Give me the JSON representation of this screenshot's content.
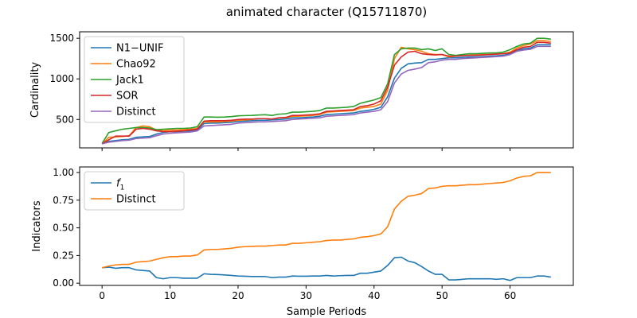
{
  "figure": {
    "suptitle": "animated character (Q15711870)"
  },
  "colors": {
    "blue": "#1f77b4",
    "orange": "#ff7f0e",
    "green": "#2ca02c",
    "red": "#d62728",
    "purple": "#9467bd"
  },
  "chart_data": [
    {
      "type": "line",
      "ylabel": "Cardinality",
      "xlim": [
        -3.3,
        69.3
      ],
      "ylim": [
        150,
        1580
      ],
      "yticks": [
        500,
        1000,
        1500
      ],
      "xticks": [
        0,
        10,
        20,
        30,
        40,
        50,
        60
      ],
      "xticklabels_visible": false,
      "legend": "upper left",
      "x": [
        0,
        1,
        2,
        3,
        4,
        5,
        6,
        7,
        8,
        9,
        10,
        11,
        12,
        13,
        14,
        15,
        16,
        17,
        18,
        19,
        20,
        21,
        22,
        23,
        24,
        25,
        26,
        27,
        28,
        29,
        30,
        31,
        32,
        33,
        34,
        35,
        36,
        37,
        38,
        39,
        40,
        41,
        42,
        43,
        44,
        45,
        46,
        47,
        48,
        49,
        50,
        51,
        52,
        53,
        54,
        55,
        56,
        57,
        58,
        59,
        60,
        61,
        62,
        63,
        64,
        65,
        66
      ],
      "series": [
        {
          "name": "N1−UNIF",
          "color": "blue",
          "values": [
            200,
            230,
            240,
            250,
            255,
            280,
            285,
            290,
            320,
            340,
            350,
            350,
            355,
            360,
            370,
            450,
            455,
            455,
            460,
            465,
            475,
            480,
            485,
            490,
            490,
            495,
            500,
            505,
            520,
            520,
            525,
            530,
            540,
            560,
            565,
            570,
            575,
            580,
            600,
            610,
            625,
            650,
            780,
            1010,
            1130,
            1185,
            1195,
            1200,
            1240,
            1240,
            1250,
            1260,
            1260,
            1265,
            1270,
            1270,
            1275,
            1280,
            1285,
            1290,
            1310,
            1350,
            1370,
            1380,
            1420,
            1420,
            1420
          ]
        },
        {
          "name": "Chao92",
          "color": "orange",
          "values": [
            200,
            280,
            285,
            290,
            300,
            400,
            420,
            410,
            370,
            360,
            370,
            370,
            375,
            380,
            390,
            470,
            470,
            470,
            475,
            480,
            490,
            495,
            500,
            510,
            510,
            505,
            520,
            520,
            540,
            540,
            545,
            550,
            560,
            590,
            595,
            600,
            605,
            610,
            640,
            650,
            660,
            690,
            860,
            1250,
            1390,
            1370,
            1360,
            1340,
            1310,
            1300,
            1300,
            1270,
            1280,
            1290,
            1290,
            1295,
            1300,
            1300,
            1305,
            1310,
            1330,
            1380,
            1410,
            1430,
            1470,
            1470,
            1460
          ]
        },
        {
          "name": "Jack1",
          "color": "green",
          "values": [
            205,
            340,
            360,
            380,
            390,
            400,
            400,
            395,
            375,
            380,
            385,
            390,
            390,
            395,
            410,
            530,
            530,
            528,
            530,
            535,
            545,
            548,
            550,
            555,
            558,
            550,
            565,
            570,
            590,
            590,
            595,
            600,
            610,
            640,
            640,
            645,
            650,
            660,
            700,
            720,
            740,
            770,
            940,
            1300,
            1370,
            1380,
            1380,
            1360,
            1370,
            1350,
            1370,
            1300,
            1290,
            1300,
            1310,
            1310,
            1315,
            1320,
            1320,
            1330,
            1360,
            1400,
            1430,
            1440,
            1500,
            1500,
            1490
          ]
        },
        {
          "name": "SOR",
          "color": "red",
          "values": [
            200,
            250,
            295,
            295,
            295,
            380,
            390,
            380,
            360,
            350,
            350,
            355,
            360,
            370,
            380,
            480,
            485,
            485,
            485,
            490,
            500,
            505,
            505,
            510,
            510,
            505,
            520,
            525,
            550,
            550,
            555,
            560,
            570,
            600,
            605,
            610,
            615,
            620,
            660,
            670,
            690,
            730,
            900,
            1170,
            1270,
            1330,
            1340,
            1310,
            1300,
            1295,
            1300,
            1280,
            1280,
            1285,
            1290,
            1290,
            1295,
            1300,
            1305,
            1310,
            1320,
            1360,
            1390,
            1400,
            1450,
            1450,
            1440
          ]
        },
        {
          "name": "Distinct",
          "color": "purple",
          "values": [
            200,
            220,
            230,
            240,
            245,
            265,
            270,
            275,
            300,
            320,
            330,
            335,
            340,
            345,
            360,
            420,
            425,
            430,
            435,
            440,
            455,
            460,
            465,
            470,
            470,
            475,
            480,
            485,
            500,
            505,
            510,
            515,
            520,
            540,
            545,
            550,
            555,
            560,
            580,
            590,
            600,
            620,
            720,
            950,
            1060,
            1105,
            1120,
            1140,
            1200,
            1210,
            1230,
            1240,
            1240,
            1250,
            1255,
            1260,
            1265,
            1270,
            1275,
            1280,
            1300,
            1340,
            1355,
            1365,
            1400,
            1400,
            1400
          ]
        }
      ]
    },
    {
      "type": "line",
      "xlabel": "Sample Periods",
      "ylabel": "Indicators",
      "xlim": [
        -3.3,
        69.3
      ],
      "ylim": [
        -0.02,
        1.05
      ],
      "yticks": [
        0.0,
        0.25,
        0.5,
        0.75,
        1.0
      ],
      "yticklabels": [
        "0.00",
        "0.25",
        "0.50",
        "0.75",
        "1.00"
      ],
      "xticks": [
        0,
        10,
        20,
        30,
        40,
        50,
        60
      ],
      "xticklabels": [
        "0",
        "10",
        "20",
        "30",
        "40",
        "50",
        "60"
      ],
      "legend": "upper left",
      "x": [
        0,
        1,
        2,
        3,
        4,
        5,
        6,
        7,
        8,
        9,
        10,
        11,
        12,
        13,
        14,
        15,
        16,
        17,
        18,
        19,
        20,
        21,
        22,
        23,
        24,
        25,
        26,
        27,
        28,
        29,
        30,
        31,
        32,
        33,
        34,
        35,
        36,
        37,
        38,
        39,
        40,
        41,
        42,
        43,
        44,
        45,
        46,
        47,
        48,
        49,
        50,
        51,
        52,
        53,
        54,
        55,
        56,
        57,
        58,
        59,
        60,
        61,
        62,
        63,
        64,
        65,
        66
      ],
      "series": [
        {
          "name": "f1",
          "color": "blue",
          "values": [
            0.14,
            0.145,
            0.135,
            0.14,
            0.14,
            0.12,
            0.115,
            0.11,
            0.05,
            0.04,
            0.05,
            0.05,
            0.045,
            0.045,
            0.045,
            0.085,
            0.08,
            0.078,
            0.075,
            0.07,
            0.065,
            0.063,
            0.06,
            0.06,
            0.06,
            0.05,
            0.055,
            0.055,
            0.065,
            0.063,
            0.063,
            0.065,
            0.065,
            0.07,
            0.065,
            0.068,
            0.07,
            0.07,
            0.09,
            0.09,
            0.1,
            0.11,
            0.16,
            0.23,
            0.235,
            0.2,
            0.185,
            0.15,
            0.11,
            0.08,
            0.08,
            0.03,
            0.03,
            0.035,
            0.04,
            0.04,
            0.04,
            0.04,
            0.035,
            0.04,
            0.025,
            0.05,
            0.05,
            0.05,
            0.065,
            0.065,
            0.055
          ]
        },
        {
          "name": "Distinct",
          "color": "orange",
          "values": [
            0.14,
            0.155,
            0.165,
            0.17,
            0.17,
            0.19,
            0.195,
            0.2,
            0.215,
            0.23,
            0.24,
            0.24,
            0.245,
            0.245,
            0.255,
            0.3,
            0.305,
            0.305,
            0.31,
            0.315,
            0.325,
            0.33,
            0.332,
            0.335,
            0.335,
            0.34,
            0.345,
            0.345,
            0.36,
            0.36,
            0.365,
            0.37,
            0.375,
            0.385,
            0.39,
            0.39,
            0.395,
            0.4,
            0.415,
            0.42,
            0.43,
            0.445,
            0.51,
            0.67,
            0.74,
            0.785,
            0.795,
            0.81,
            0.855,
            0.86,
            0.875,
            0.88,
            0.88,
            0.885,
            0.89,
            0.89,
            0.895,
            0.9,
            0.905,
            0.91,
            0.925,
            0.95,
            0.965,
            0.97,
            1.0,
            1.0,
            1.0
          ]
        }
      ]
    }
  ]
}
